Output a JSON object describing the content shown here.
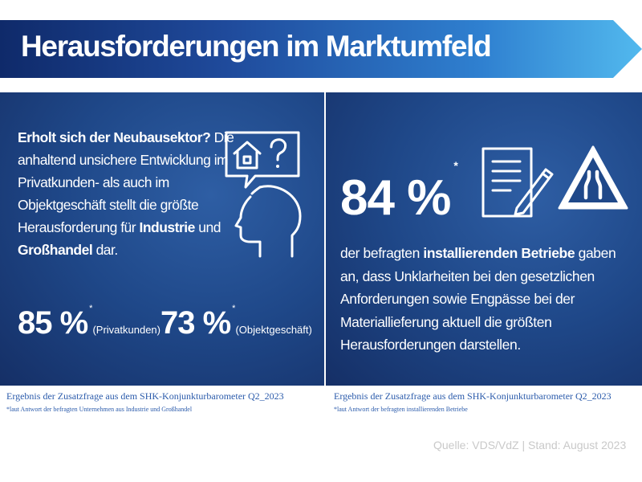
{
  "title": "Herausforderungen im Marktumfeld",
  "left": {
    "question": "Erholt sich der Neubausektor?",
    "text_1": "Die anhaltend unsichere Entwicklung im Privatkunden- als auch im Objektgeschäft stellt die größte Herausforderung für ",
    "text_bold_1": "Industrie",
    "text_2": " und ",
    "text_bold_2": "Großhandel",
    "text_3": " dar.",
    "stat_1": {
      "value": "85 %",
      "asterisk": "*",
      "caption": "(Privatkunden)"
    },
    "stat_2": {
      "value": "73 %",
      "asterisk": "*",
      "caption": "(Objektgeschäft)"
    },
    "icon": "head-house-question-icon",
    "footnote_title": "Ergebnis der Zusatzfrage aus dem SHK-Konjunkturbarometer Q2_2023",
    "footnote_note": "*laut Antwort der befragten Unternehmen aus Industrie und Großhandel"
  },
  "right": {
    "stat": {
      "value": "84 %",
      "asterisk": "*"
    },
    "text_1": "der befragten ",
    "text_bold": "installierenden Betriebe",
    "text_2": " gaben an, dass Unklarheiten bei den gesetzlichen Anforderungen sowie  Engpässe bei der Materiallieferung aktuell die größten Herausforderungen darstellen.",
    "icons": [
      "document-pen-icon",
      "road-narrows-warning-icon"
    ],
    "footnote_title": "Ergebnis der Zusatzfrage aus dem SHK-Konjunkturbarometer Q2_2023",
    "footnote_note": "*laut Antwort der befragten installierenden Betriebe"
  },
  "source": "Quelle: VDS/VdZ | Stand: August 2023",
  "colors": {
    "banner_start": "#0f2a6a",
    "banner_end": "#4fb6ec",
    "panel": "#1f4889",
    "footnote": "#2b5bab",
    "source": "#c9c9c9"
  }
}
